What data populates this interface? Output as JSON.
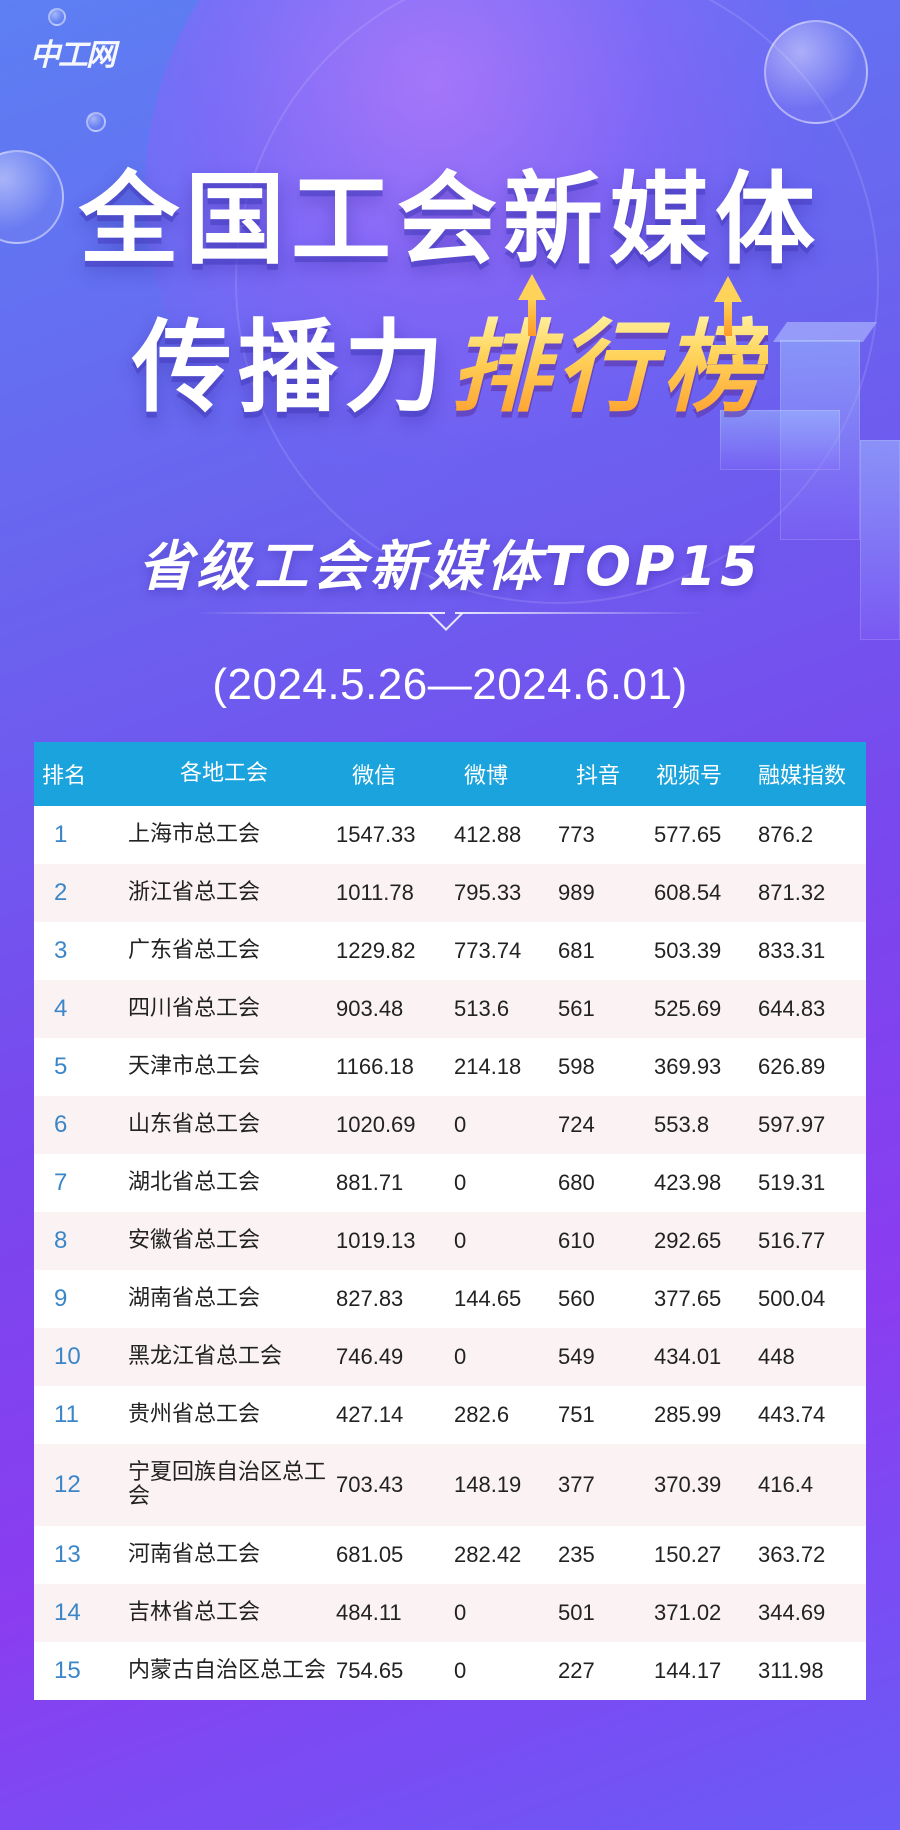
{
  "logo": "中工网",
  "title": {
    "line1": "全国工会新媒体",
    "line2_plain": "传播力",
    "line2_highlight": "排行榜"
  },
  "subtitle": "省级工会新媒体TOP15",
  "date_range": "(2024.5.26—2024.6.01)",
  "colors": {
    "header_bg": "#1aa3dc",
    "rank_text": "#3b86c9",
    "highlight_gradient": [
      "#fff4a8",
      "#ff9a2a"
    ]
  },
  "table": {
    "headers": [
      "排名",
      "各地工会",
      "微信",
      "微博",
      "抖音",
      "视频号",
      "融媒指数"
    ],
    "rows": [
      {
        "rank": "1",
        "name": "上海市总工会",
        "weixin": "1547.33",
        "weibo": "412.88",
        "douyin": "773",
        "shipinhao": "577.65",
        "index": "876.2"
      },
      {
        "rank": "2",
        "name": "浙江省总工会",
        "weixin": "1011.78",
        "weibo": "795.33",
        "douyin": "989",
        "shipinhao": "608.54",
        "index": "871.32"
      },
      {
        "rank": "3",
        "name": "广东省总工会",
        "weixin": "1229.82",
        "weibo": "773.74",
        "douyin": "681",
        "shipinhao": "503.39",
        "index": "833.31"
      },
      {
        "rank": "4",
        "name": "四川省总工会",
        "weixin": "903.48",
        "weibo": "513.6",
        "douyin": "561",
        "shipinhao": "525.69",
        "index": "644.83"
      },
      {
        "rank": "5",
        "name": "天津市总工会",
        "weixin": "1166.18",
        "weibo": "214.18",
        "douyin": "598",
        "shipinhao": "369.93",
        "index": "626.89"
      },
      {
        "rank": "6",
        "name": "山东省总工会",
        "weixin": "1020.69",
        "weibo": "0",
        "douyin": "724",
        "shipinhao": "553.8",
        "index": "597.97"
      },
      {
        "rank": "7",
        "name": "湖北省总工会",
        "weixin": "881.71",
        "weibo": "0",
        "douyin": "680",
        "shipinhao": "423.98",
        "index": "519.31"
      },
      {
        "rank": "8",
        "name": "安徽省总工会",
        "weixin": "1019.13",
        "weibo": "0",
        "douyin": "610",
        "shipinhao": "292.65",
        "index": "516.77"
      },
      {
        "rank": "9",
        "name": "湖南省总工会",
        "weixin": "827.83",
        "weibo": "144.65",
        "douyin": "560",
        "shipinhao": "377.65",
        "index": "500.04"
      },
      {
        "rank": "10",
        "name": "黑龙江省总工会",
        "weixin": "746.49",
        "weibo": "0",
        "douyin": "549",
        "shipinhao": "434.01",
        "index": "448"
      },
      {
        "rank": "11",
        "name": "贵州省总工会",
        "weixin": "427.14",
        "weibo": "282.6",
        "douyin": "751",
        "shipinhao": "285.99",
        "index": "443.74"
      },
      {
        "rank": "12",
        "name": "宁夏回族自治区总工会",
        "weixin": "703.43",
        "weibo": "148.19",
        "douyin": "377",
        "shipinhao": "370.39",
        "index": "416.4"
      },
      {
        "rank": "13",
        "name": "河南省总工会",
        "weixin": "681.05",
        "weibo": "282.42",
        "douyin": "235",
        "shipinhao": "150.27",
        "index": "363.72"
      },
      {
        "rank": "14",
        "name": "吉林省总工会",
        "weixin": "484.11",
        "weibo": "0",
        "douyin": "501",
        "shipinhao": "371.02",
        "index": "344.69"
      },
      {
        "rank": "15",
        "name": "内蒙古自治区总工会",
        "weixin": "754.65",
        "weibo": "0",
        "douyin": "227",
        "shipinhao": "144.17",
        "index": "311.98"
      }
    ]
  }
}
